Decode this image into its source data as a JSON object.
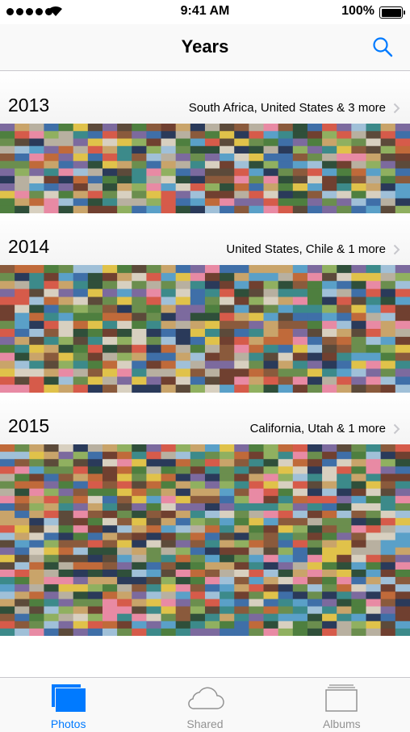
{
  "status_bar": {
    "time": "9:41 AM",
    "battery": "100%"
  },
  "nav": {
    "title": "Years"
  },
  "sections": [
    {
      "year": "2013",
      "places": "South Africa, United States & 3 more",
      "rows": 6
    },
    {
      "year": "2014",
      "places": "United States, Chile & 1 more",
      "rows": 8
    },
    {
      "year": "2015",
      "places": "California, Utah & 1 more",
      "rows": 13
    }
  ],
  "tabs": [
    {
      "label": "Photos",
      "icon": "photos-icon",
      "active": true
    },
    {
      "label": "Shared",
      "icon": "cloud-icon",
      "active": false
    },
    {
      "label": "Albums",
      "icon": "albums-icon",
      "active": false
    }
  ],
  "colors": {
    "accent": "#007aff",
    "inactive": "#929292"
  }
}
